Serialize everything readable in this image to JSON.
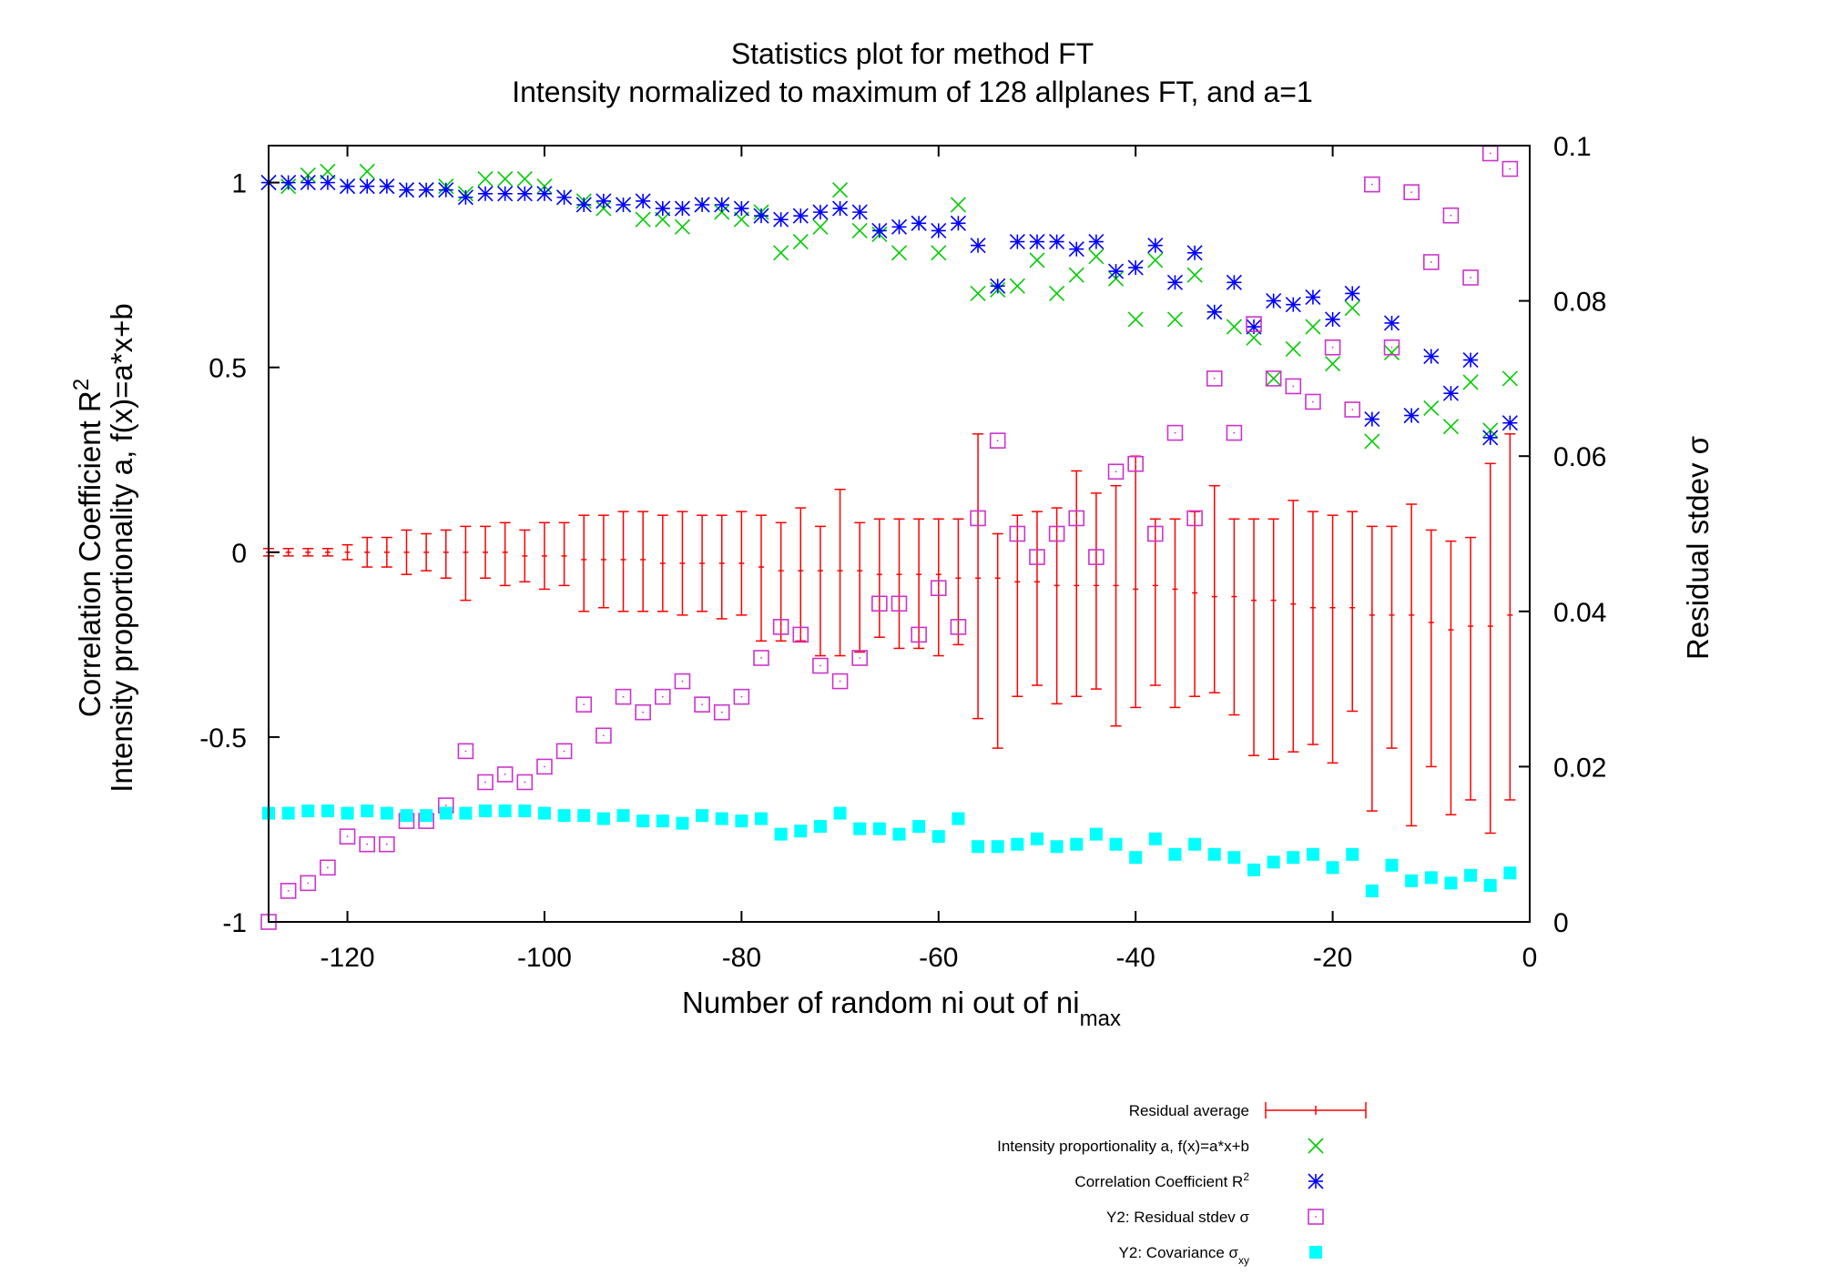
{
  "chart_data": {
    "type": "scatter",
    "title": "Statistics plot for method FT",
    "subtitle": "Intensity normalized to maximum of 128 allplanes FT, and a=1",
    "xlabel": "Number of random ni out of ni",
    "xlabel_sub": "max",
    "ylabel_line1": "Correlation Coefficient R",
    "ylabel_line1_sup": "2",
    "ylabel_line2": "Intensity proportionality a, f(x)=a*x+b",
    "y2label": "Residual stdev σ",
    "xlim": [
      -128,
      0
    ],
    "ylim": [
      -1,
      1.1
    ],
    "y2lim": [
      0,
      0.1
    ],
    "x_ticks": [
      -120,
      -100,
      -80,
      -60,
      -40,
      -20,
      0
    ],
    "x_tick_labels": [
      "-120",
      "-100",
      "-80",
      "-60",
      "-40",
      "-20",
      "0"
    ],
    "y_ticks": [
      -1,
      -0.5,
      0,
      0.5,
      1
    ],
    "y_tick_labels": [
      "-1",
      "-0.5",
      "0",
      "0.5",
      "1"
    ],
    "y2_ticks": [
      0,
      0.02,
      0.04,
      0.06,
      0.08,
      0.1
    ],
    "y2_tick_labels": [
      "0",
      "0.02",
      "0.04",
      "0.06",
      "0.08",
      "0.1"
    ],
    "legend_position": "bottom-right, below plot",
    "x": [
      -128,
      -126,
      -124,
      -122,
      -120,
      -118,
      -116,
      -114,
      -112,
      -110,
      -108,
      -106,
      -104,
      -102,
      -100,
      -98,
      -96,
      -94,
      -92,
      -90,
      -88,
      -86,
      -84,
      -82,
      -80,
      -78,
      -76,
      -74,
      -72,
      -70,
      -68,
      -66,
      -64,
      -62,
      -60,
      -58,
      -56,
      -54,
      -52,
      -50,
      -48,
      -46,
      -44,
      -42,
      -40,
      -38,
      -36,
      -34,
      -32,
      -30,
      -28,
      -26,
      -24,
      -22,
      -20,
      -18,
      -16,
      -14,
      -12,
      -10,
      -8,
      -6,
      -4,
      -2
    ],
    "series": [
      {
        "name": "Residual average",
        "axis": "y",
        "marker": "errorbar",
        "color": "#ff0000",
        "values": [
          0,
          0,
          0,
          0,
          0,
          0,
          0,
          0,
          0,
          0,
          0,
          0,
          0,
          -0.01,
          -0.01,
          -0.01,
          -0.02,
          -0.02,
          -0.02,
          -0.02,
          -0.03,
          -0.03,
          -0.03,
          -0.03,
          -0.03,
          -0.04,
          -0.05,
          -0.05,
          -0.05,
          -0.05,
          -0.05,
          -0.06,
          -0.06,
          -0.06,
          -0.06,
          -0.07,
          -0.07,
          -0.07,
          -0.08,
          -0.08,
          -0.09,
          -0.09,
          -0.09,
          -0.09,
          -0.1,
          -0.09,
          -0.1,
          -0.11,
          -0.12,
          -0.12,
          -0.13,
          -0.13,
          -0.14,
          -0.15,
          -0.15,
          -0.15,
          -0.17,
          -0.17,
          -0.17,
          -0.19,
          -0.21,
          -0.2,
          -0.2,
          -0.17
        ],
        "err_low": [
          -0.01,
          -0.01,
          -0.01,
          -0.01,
          -0.02,
          -0.04,
          -0.04,
          -0.06,
          -0.05,
          -0.07,
          -0.13,
          -0.07,
          -0.09,
          -0.08,
          -0.1,
          -0.09,
          -0.16,
          -0.15,
          -0.16,
          -0.16,
          -0.16,
          -0.17,
          -0.16,
          -0.18,
          -0.17,
          -0.24,
          -0.24,
          -0.24,
          -0.28,
          -0.28,
          -0.27,
          -0.23,
          -0.26,
          -0.26,
          -0.28,
          -0.25,
          -0.45,
          -0.53,
          -0.39,
          -0.36,
          -0.41,
          -0.39,
          -0.37,
          -0.47,
          -0.42,
          -0.36,
          -0.42,
          -0.39,
          -0.38,
          -0.44,
          -0.55,
          -0.56,
          -0.54,
          -0.52,
          -0.57,
          -0.43,
          -0.7,
          -0.53,
          -0.74,
          -0.58,
          -0.71,
          -0.67,
          -0.76,
          -0.67
        ],
        "err_high": [
          0.01,
          0.01,
          0.01,
          0.01,
          0.02,
          0.04,
          0.04,
          0.06,
          0.05,
          0.06,
          0.07,
          0.07,
          0.08,
          0.06,
          0.08,
          0.08,
          0.1,
          0.1,
          0.11,
          0.11,
          0.1,
          0.11,
          0.1,
          0.1,
          0.11,
          0.1,
          0.08,
          0.12,
          0.07,
          0.17,
          0.08,
          0.09,
          0.09,
          0.09,
          0.09,
          0.09,
          0.32,
          0.05,
          0.1,
          0.11,
          0.12,
          0.22,
          0.16,
          0.18,
          0.26,
          0.09,
          0.09,
          0.11,
          0.18,
          0.09,
          0.09,
          0.09,
          0.14,
          0.11,
          0.1,
          0.11,
          0.07,
          0.07,
          0.13,
          0.06,
          0.03,
          0.04,
          0.24,
          0.32
        ]
      },
      {
        "name": "Intensity proportionality a, f(x)=a*x+b",
        "axis": "y",
        "marker": "x",
        "color": "#00cc00",
        "values": [
          1,
          0.99,
          1.02,
          1.03,
          0.99,
          1.03,
          0.99,
          0.98,
          0.98,
          0.99,
          0.97,
          1.01,
          1.01,
          1.01,
          0.99,
          0.96,
          0.95,
          0.93,
          0.94,
          0.9,
          0.9,
          0.88,
          0.94,
          0.92,
          0.9,
          0.92,
          0.81,
          0.84,
          0.88,
          0.98,
          0.87,
          0.86,
          0.81,
          0.89,
          0.81,
          0.94,
          0.7,
          0.71,
          0.72,
          0.79,
          0.7,
          0.75,
          0.8,
          0.74,
          0.63,
          0.79,
          0.63,
          0.75,
          0.65,
          0.61,
          0.58,
          0.47,
          0.55,
          0.61,
          0.51,
          0.66,
          0.3,
          0.54,
          0.37,
          0.39,
          0.34,
          0.46,
          0.33,
          0.47
        ]
      },
      {
        "name": "Correlation Coefficient R",
        "name_sup": "2",
        "axis": "y",
        "marker": "star",
        "color": "#0000ff",
        "values": [
          1,
          1,
          1,
          1,
          0.99,
          0.99,
          0.99,
          0.98,
          0.98,
          0.98,
          0.96,
          0.97,
          0.97,
          0.97,
          0.97,
          0.96,
          0.94,
          0.95,
          0.94,
          0.95,
          0.93,
          0.93,
          0.94,
          0.94,
          0.93,
          0.91,
          0.9,
          0.91,
          0.92,
          0.93,
          0.92,
          0.87,
          0.88,
          0.89,
          0.87,
          0.89,
          0.83,
          0.72,
          0.84,
          0.84,
          0.84,
          0.82,
          0.84,
          0.76,
          0.77,
          0.83,
          0.73,
          0.81,
          0.65,
          0.73,
          0.61,
          0.68,
          0.67,
          0.69,
          0.63,
          0.7,
          0.36,
          0.62,
          0.37,
          0.53,
          0.43,
          0.52,
          0.31,
          0.35
        ]
      },
      {
        "name": "Y2: Residual stdev σ",
        "axis": "y2",
        "marker": "square-open",
        "color": "#cc33cc",
        "values": [
          0,
          0.004,
          0.005,
          0.007,
          0.011,
          0.01,
          0.01,
          0.013,
          0.013,
          0.015,
          0.022,
          0.018,
          0.019,
          0.018,
          0.02,
          0.022,
          0.028,
          0.024,
          0.029,
          0.027,
          0.029,
          0.031,
          0.028,
          0.027,
          0.029,
          0.034,
          0.038,
          0.037,
          0.033,
          0.031,
          0.034,
          0.041,
          0.041,
          0.037,
          0.043,
          0.038,
          0.052,
          0.062,
          0.05,
          0.047,
          0.05,
          0.052,
          0.047,
          0.058,
          0.059,
          0.05,
          0.063,
          0.052,
          0.07,
          0.063,
          0.077,
          0.07,
          0.069,
          0.067,
          0.074,
          0.066,
          0.095,
          0.074,
          0.094,
          0.085,
          0.091,
          0.083,
          0.099,
          0.097
        ]
      },
      {
        "name": "Y2: Covariance σ",
        "name_sub": "xy",
        "axis": "y2",
        "marker": "square-filled",
        "color": "#00ffff",
        "values": [
          0.014,
          0.014,
          0.0143,
          0.0143,
          0.014,
          0.0143,
          0.014,
          0.0137,
          0.0137,
          0.014,
          0.014,
          0.0143,
          0.0143,
          0.0143,
          0.014,
          0.0137,
          0.0137,
          0.0133,
          0.0137,
          0.013,
          0.013,
          0.0127,
          0.0137,
          0.0133,
          0.013,
          0.0133,
          0.0113,
          0.0117,
          0.0123,
          0.014,
          0.012,
          0.012,
          0.0113,
          0.0123,
          0.011,
          0.0133,
          0.0097,
          0.0097,
          0.01,
          0.0107,
          0.0097,
          0.01,
          0.0113,
          0.01,
          0.0083,
          0.0107,
          0.0087,
          0.01,
          0.0087,
          0.0083,
          0.0067,
          0.0077,
          0.0083,
          0.0087,
          0.007,
          0.0087,
          0.004,
          0.0073,
          0.0053,
          0.0057,
          0.005,
          0.006,
          0.0047,
          0.0063
        ]
      }
    ]
  }
}
